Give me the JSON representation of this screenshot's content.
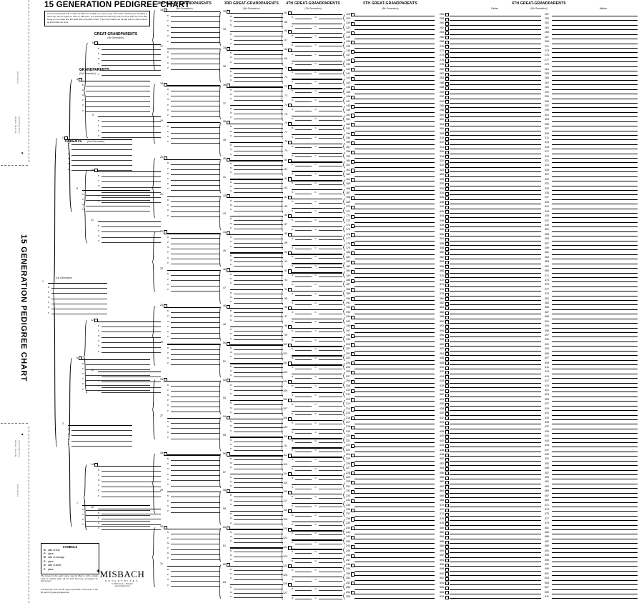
{
  "page": {
    "title": "15 GENERATION PEDIGREE CHART",
    "side_title": "15 GENERATION PEDIGREE CHART",
    "instructions": "It is recommended that a chart be filled out initially as a work copy. Then after checking for accuracy a final copy can be typed or done in ball point. It is intended the final copy can be done with the front side being on one chart and the back side on another chart. Then both charts can be laid side by side to show all information at once."
  },
  "margin_labels": {
    "cut": "(Cut here)",
    "attach_line1": "Attach here by",
    "attach_line2": "matching lines",
    "down_arrow": "▼",
    "up_arrow": "▲"
  },
  "generations": [
    {
      "label": "",
      "sublabel": "(1st Generation)",
      "first": 1,
      "last": 1
    },
    {
      "label": "PARENTS",
      "sublabel": "(2nd Generation)",
      "first": 2,
      "last": 3
    },
    {
      "label": "GRANDPARENTS",
      "sublabel": "(3rd Generation)",
      "first": 4,
      "last": 7
    },
    {
      "label": "GREAT-GRANDPARENTS",
      "sublabel": "(4th Generation)",
      "first": 8,
      "last": 15
    },
    {
      "label": "2ND GREAT-GRANDPARENTS",
      "sublabel": "(5th Generation)",
      "first": 16,
      "last": 31
    },
    {
      "label": "3RD GREAT-GRANDPARENTS",
      "sublabel": "(6th Generation)",
      "first": 32,
      "last": 63
    },
    {
      "label": "4TH GREAT-GRANDPARENTS",
      "sublabel": "(7th Generation)",
      "first": 64,
      "last": 127
    },
    {
      "label": "5TH GREAT-GRANDPARENTS",
      "sublabel": "(8th Generation)",
      "first": 128,
      "last": 255
    },
    {
      "label": "6TH GREAT-GRANDPARENTS",
      "sublabel": "(9th Generation)",
      "first": 256,
      "last": 511,
      "father_label": "Father",
      "mother_label": "Mother"
    }
  ],
  "line_labels": {
    "full": [
      "B.",
      "P.",
      "M.",
      "P.",
      "D.",
      "P."
    ],
    "short": [
      "B.",
      "P.",
      "D.",
      "P."
    ],
    "bmd": [
      "B.",
      "M.",
      "D."
    ],
    "bd": [
      "B.",
      "D."
    ]
  },
  "symbols": {
    "title": "SYMBOLS",
    "rows": [
      {
        "symbol": "B",
        "meaning": "date of birth"
      },
      {
        "symbol": "P",
        "meaning": "place"
      },
      {
        "symbol": "M",
        "meaning": "date of marriage"
      },
      {
        "symbol": "P",
        "meaning": "place"
      },
      {
        "symbol": "D",
        "meaning": "date of death"
      },
      {
        "symbol": "P",
        "meaning": "place"
      }
    ],
    "note1": "The boxes by the each name may be filled in with a check mark to indicate when all the work has been completed for that person.",
    "note2": "If desired the year of birth may be penciled in the boxes of the 5th and 6th great grandparents."
  },
  "logo": {
    "icon": "sunburst-icon",
    "icon_glyph": "✶",
    "name": "MISBACH",
    "subtitle": "ENTERPRISES",
    "line1": "© 2003 Grant L. Misbach",
    "line2": "www.misbach.org"
  }
}
